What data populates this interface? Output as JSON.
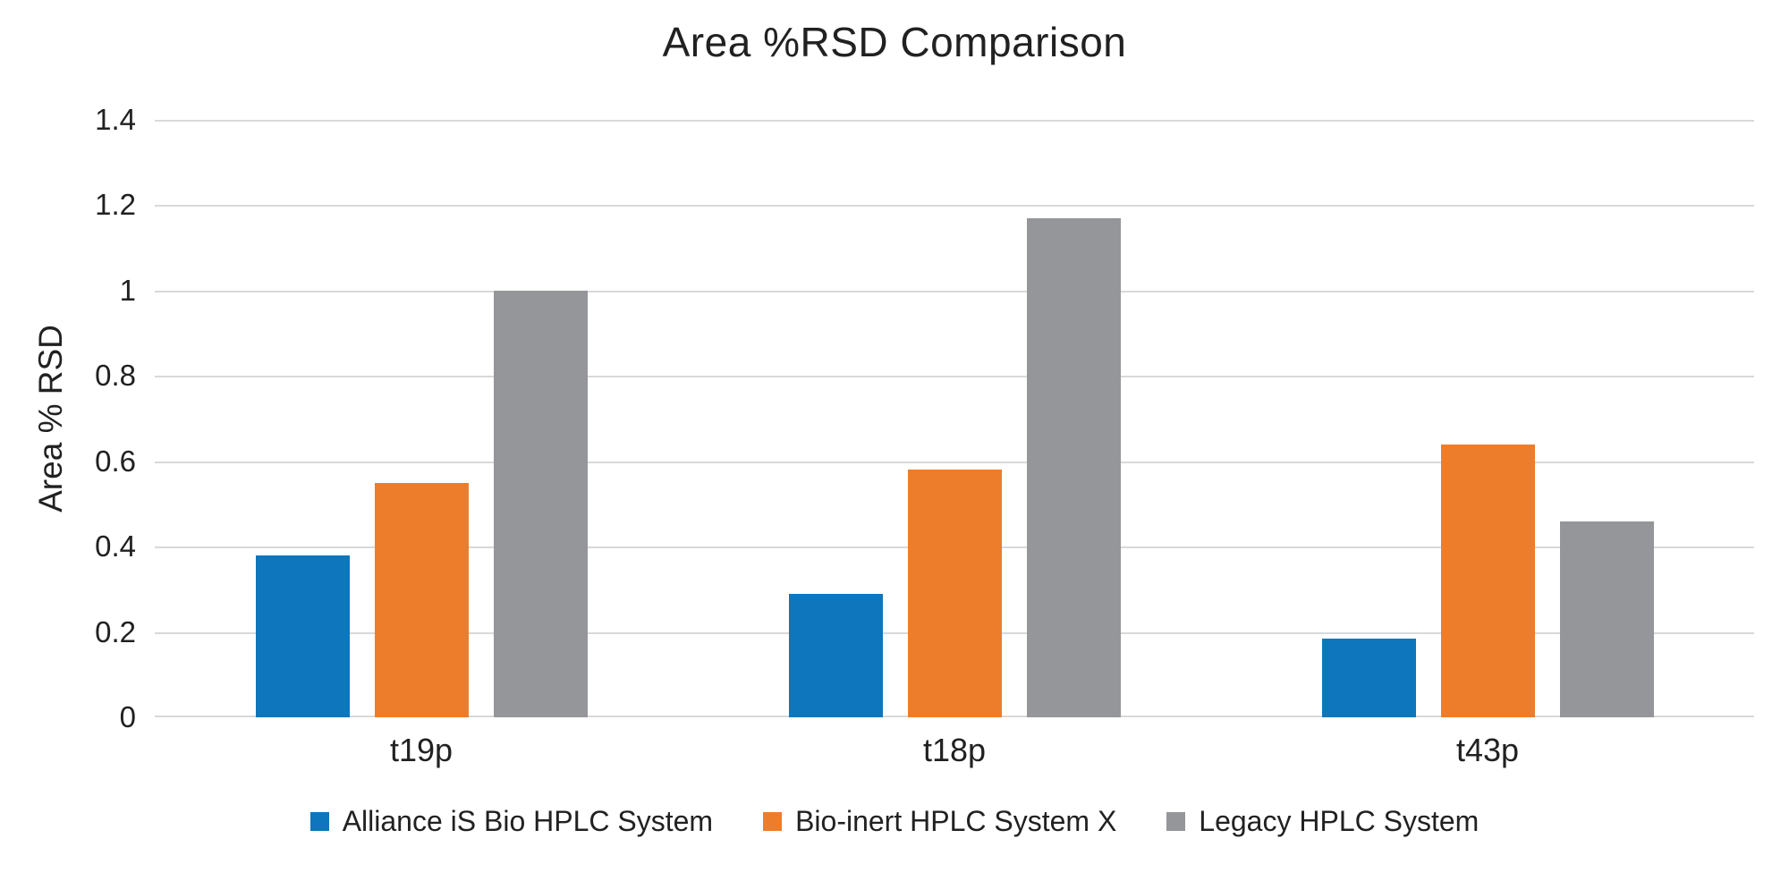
{
  "page": {
    "background": "#ffffff"
  },
  "chart_data": {
    "type": "bar",
    "title": "Area %RSD Comparison",
    "ylabel": "Area % RSD",
    "xlabel": "",
    "categories": [
      "t19p",
      "t18p",
      "t43p"
    ],
    "series": [
      {
        "name": "Alliance iS Bio HPLC System",
        "color": "#0d76bd",
        "values": [
          0.38,
          0.29,
          0.185
        ]
      },
      {
        "name": "Bio-inert HPLC System X",
        "color": "#ed7d2b",
        "values": [
          0.55,
          0.58,
          0.64
        ]
      },
      {
        "name": "Legacy HPLC System",
        "color": "#95969a",
        "values": [
          1.0,
          1.17,
          0.46
        ]
      }
    ],
    "ylim": [
      0,
      1.4
    ],
    "yticks": [
      {
        "value": 0,
        "label": "0"
      },
      {
        "value": 0.2,
        "label": "0.2"
      },
      {
        "value": 0.4,
        "label": "0.4"
      },
      {
        "value": 0.6,
        "label": "0.6"
      },
      {
        "value": 0.8,
        "label": "0.8"
      },
      {
        "value": 1.0,
        "label": "1"
      },
      {
        "value": 1.2,
        "label": "1.2"
      },
      {
        "value": 1.4,
        "label": "1.4"
      }
    ],
    "grid": true,
    "grid_color": "#d9d9d9",
    "axis_line_color": "#d9d9d9",
    "text_color": "#212121",
    "legend_position": "bottom"
  }
}
